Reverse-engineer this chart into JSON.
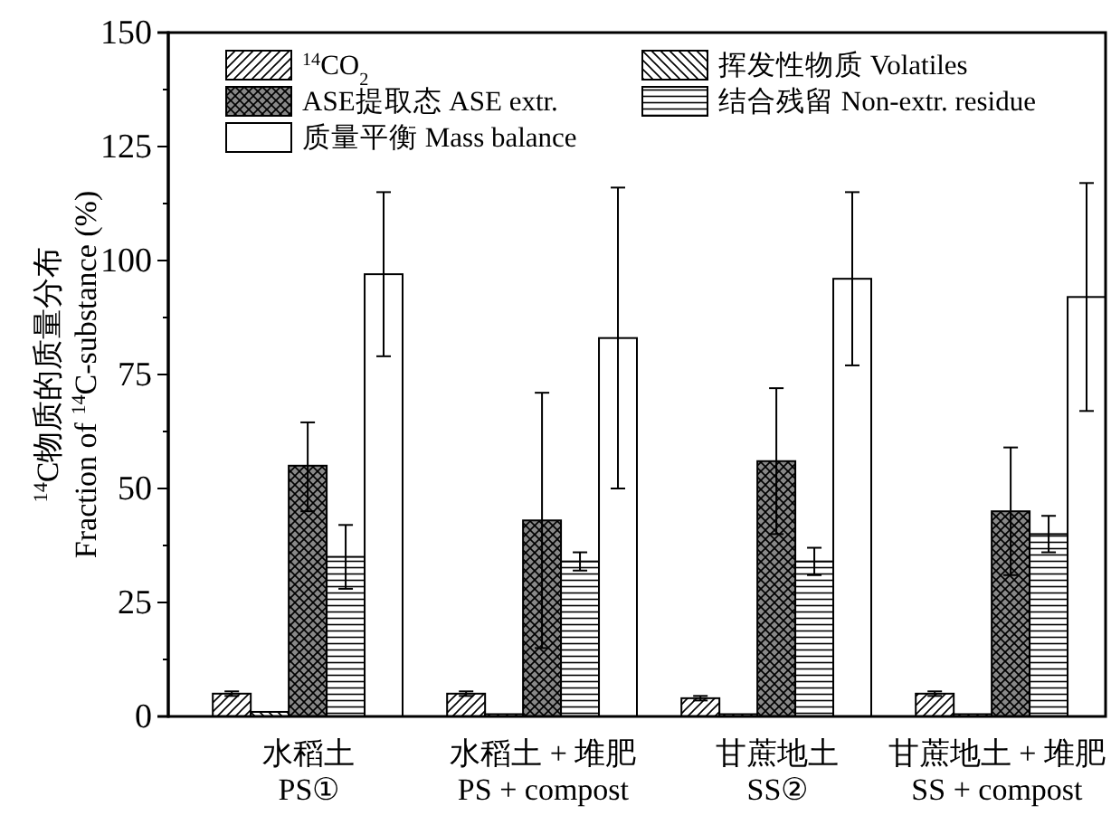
{
  "chart_data": {
    "type": "bar",
    "ylabel": "$^{14}$C物质的质量分布\nFraction of $^{14}$C-substance (%)",
    "categories": [
      "水稻土\nPS①",
      "水稻土 + 堆肥\nPS + compost",
      "甘蔗地土\nSS②",
      "甘蔗地土 + 堆肥\nSS + compost"
    ],
    "series": [
      {
        "name": "$^{14}$CO$_{2}$",
        "color": "#000000",
        "values": [
          5,
          5,
          4,
          5
        ],
        "errors": [
          0.5,
          0.5,
          0.5,
          0.5
        ]
      },
      {
        "name": "挥发性物质 Volatiles",
        "color": "#000000",
        "values": [
          1,
          0.5,
          0.5,
          0.5
        ],
        "errors": [
          null,
          null,
          null,
          null
        ]
      },
      {
        "name": "ASE提取态 ASE extr.",
        "color": "#000000",
        "values": [
          55,
          43,
          56,
          45
        ],
        "errors": [
          [
            45,
            64.5
          ],
          [
            15,
            71
          ],
          [
            40,
            72
          ],
          [
            31,
            59
          ]
        ]
      },
      {
        "name": "结合残留 Non-extr. residue",
        "color": "#000000",
        "values": [
          35,
          34,
          34,
          40
        ],
        "errors": [
          [
            28,
            42
          ],
          [
            32,
            36
          ],
          [
            31,
            37
          ],
          [
            36,
            44
          ]
        ]
      },
      {
        "name": "质量平衡 Mass balance",
        "color": "#ffffff",
        "values": [
          97,
          83,
          96,
          92
        ],
        "errors": [
          [
            79,
            115
          ],
          [
            50,
            116
          ],
          [
            77,
            115
          ],
          [
            67,
            117
          ]
        ]
      }
    ],
    "ylim": [
      0,
      150
    ],
    "yticks": [
      0,
      {
        "value": 12.5,
        "label": null
      },
      25,
      {
        "value": 37.5,
        "label": null
      },
      50,
      {
        "value": 62.5,
        "label": null
      },
      75,
      {
        "value": 87.5,
        "label": null
      },
      100,
      {
        "value": 112.5,
        "label": null
      },
      125,
      {
        "value": 137.5,
        "label": null
      },
      150
    ],
    "legend": "top",
    "grid": false
  }
}
